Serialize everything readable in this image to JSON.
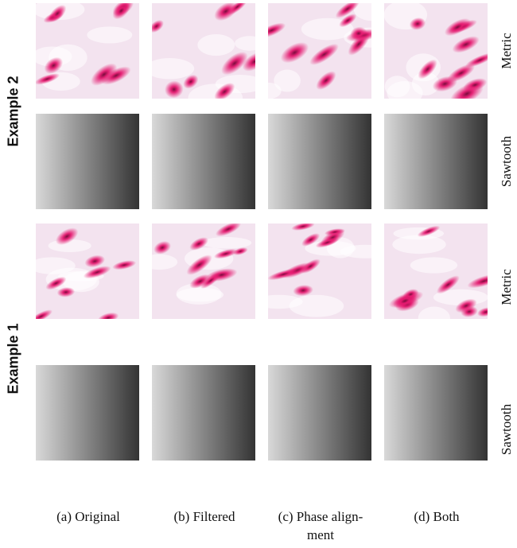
{
  "groups": {
    "example2": "Example 2",
    "example1": "Example 1"
  },
  "row_labels": {
    "metric": "Metric",
    "sawtooth": "Sawtooth"
  },
  "captions": {
    "a": "(a) Original",
    "b": "(b) Filtered",
    "c": "(c) Phase align-ment",
    "d": "(d) Both"
  },
  "colors": {
    "metric_base": "#f3e3ef",
    "metric_blob": "#e4196f",
    "metric_core": "#7a0b3c",
    "sawtooth_dark": "#1a1a1a",
    "sawtooth_light": "#f2f2f2"
  }
}
